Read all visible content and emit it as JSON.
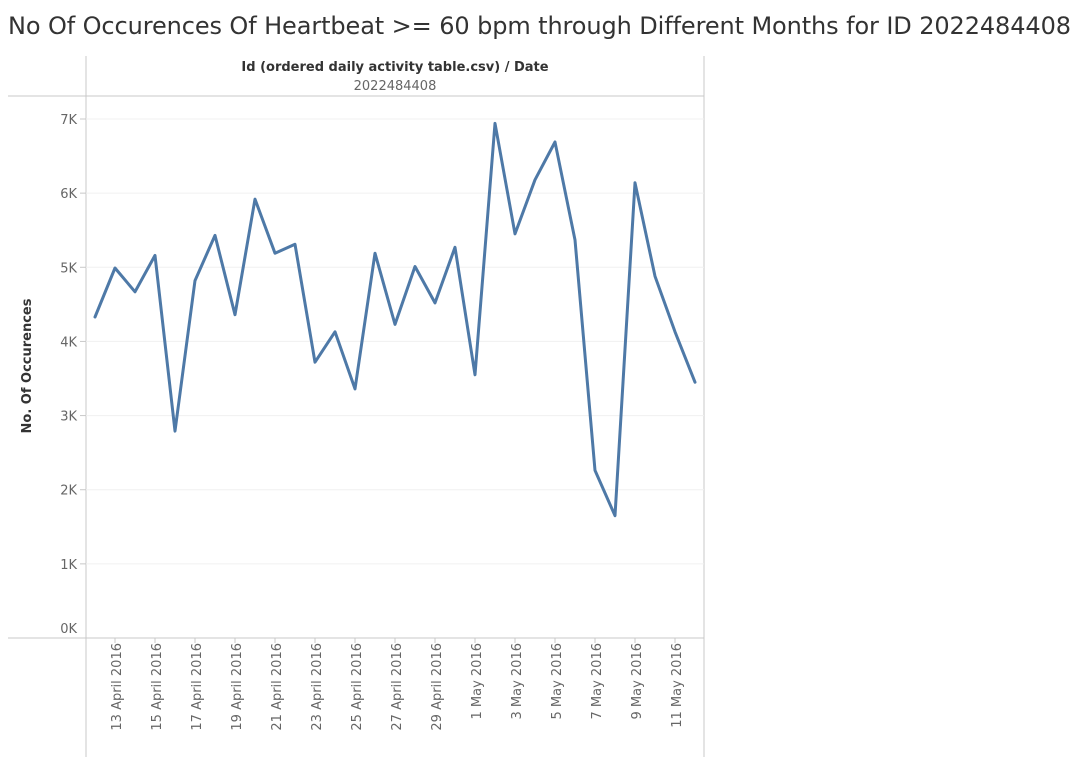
{
  "title": "No Of Occurences Of Heartbeat >= 60 bpm through Different Months for ID 2022484408",
  "header": {
    "field_label": "Id (ordered daily activity table.csv)  /  Date",
    "id_value": "2022484408"
  },
  "colors": {
    "line": "#4e79a7",
    "grid": "#f0f0f0",
    "axis": "#c8c8c8"
  },
  "chart_data": {
    "type": "line",
    "title": "No Of Occurences Of Heartbeat >= 60 bpm through Different Months for ID 2022484408",
    "xlabel": "",
    "ylabel": "No. Of Occurences",
    "ylim": [
      0,
      7000
    ],
    "yticks": [
      {
        "value": 0,
        "label": "0K"
      },
      {
        "value": 1000,
        "label": "1K"
      },
      {
        "value": 2000,
        "label": "2K"
      },
      {
        "value": 3000,
        "label": "3K"
      },
      {
        "value": 4000,
        "label": "4K"
      },
      {
        "value": 5000,
        "label": "5K"
      },
      {
        "value": 6000,
        "label": "6K"
      },
      {
        "value": 7000,
        "label": "7K"
      }
    ],
    "x": [
      "12 April 2016",
      "13 April 2016",
      "14 April 2016",
      "15 April 2016",
      "16 April 2016",
      "17 April 2016",
      "18 April 2016",
      "19 April 2016",
      "20 April 2016",
      "21 April 2016",
      "22 April 2016",
      "23 April 2016",
      "24 April 2016",
      "25 April 2016",
      "26 April 2016",
      "27 April 2016",
      "28 April 2016",
      "29 April 2016",
      "30 April 2016",
      "1 May 2016",
      "2 May 2016",
      "3 May 2016",
      "4 May 2016",
      "5 May 2016",
      "6 May 2016",
      "7 May 2016",
      "8 May 2016",
      "9 May 2016",
      "10 May 2016",
      "11 May 2016",
      "12 May 2016"
    ],
    "xtick_labels": [
      "13 April 2016",
      "15 April 2016",
      "17 April 2016",
      "19 April 2016",
      "21 April 2016",
      "23 April 2016",
      "25 April 2016",
      "27 April 2016",
      "29 April 2016",
      "1 May 2016",
      "3 May 2016",
      "5 May 2016",
      "7 May 2016",
      "9 May 2016",
      "11 May 2016"
    ],
    "series": [
      {
        "values": [
          4330,
          4990,
          4670,
          5160,
          2790,
          4820,
          5430,
          4360,
          5920,
          5190,
          5310,
          3720,
          4130,
          3360,
          5190,
          4230,
          5010,
          4520,
          5270,
          3550,
          6940,
          5450,
          6180,
          6690,
          5370,
          2260,
          1650,
          6140,
          4880,
          4130,
          3450
        ]
      }
    ],
    "grid": true,
    "legend": "none"
  }
}
